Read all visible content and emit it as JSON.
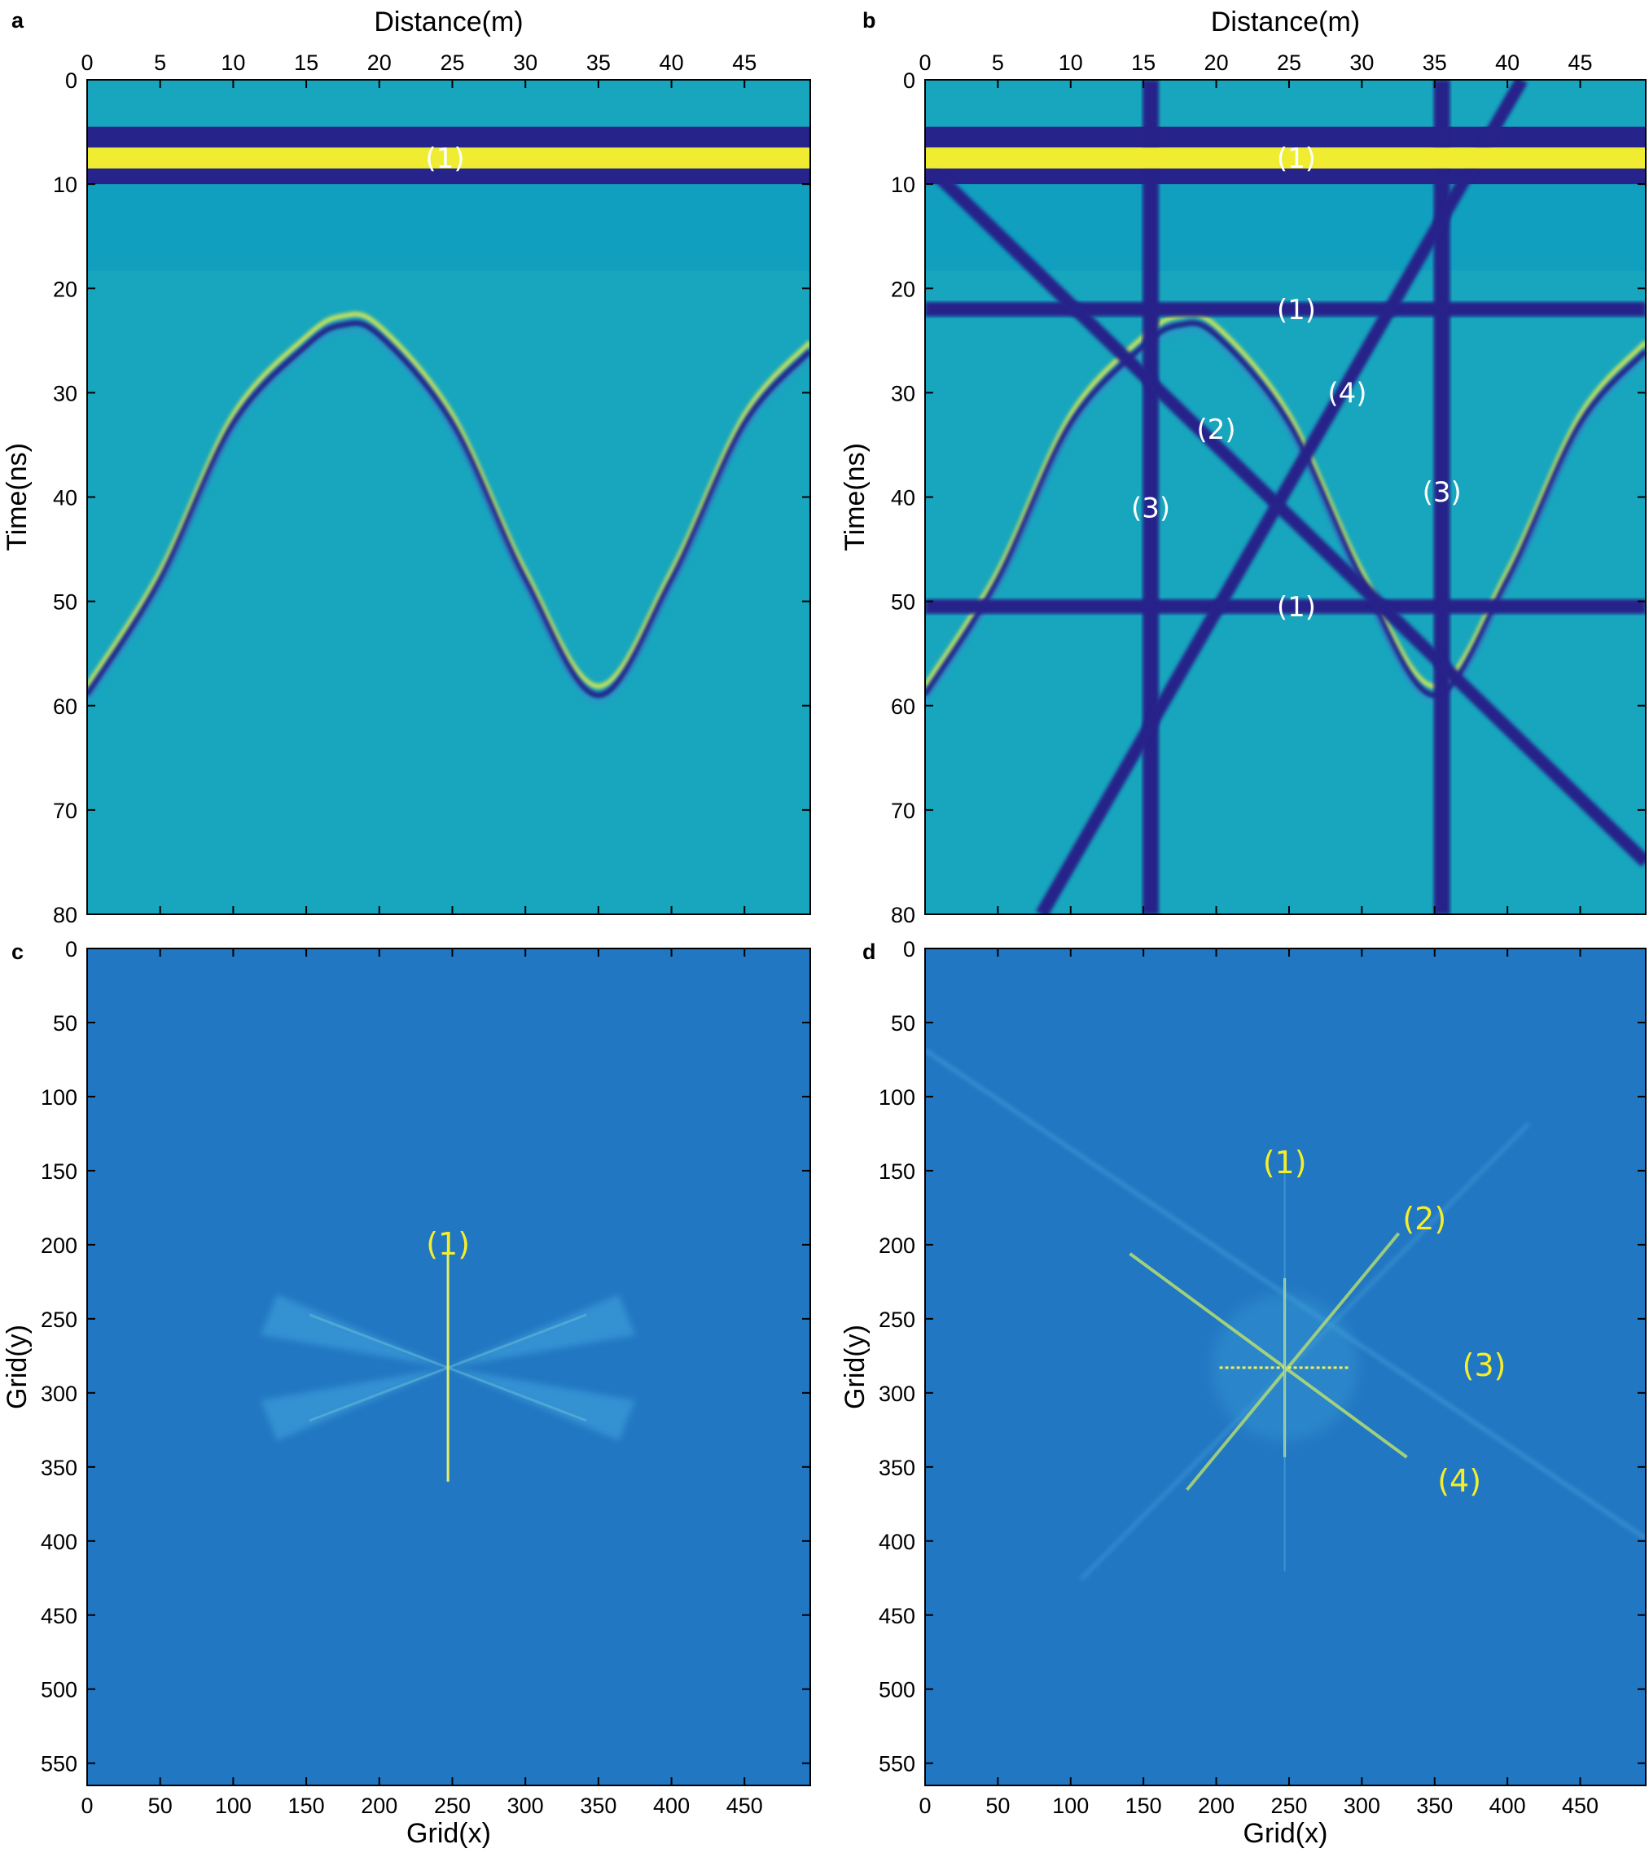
{
  "colors": {
    "background_a": "#17a6be",
    "background_cd": "#2277c2",
    "dark_blue": "#26238a",
    "yellow": "#f0ec32",
    "annotation_yellow": "#f5ee2a"
  },
  "chart_data": [
    {
      "panel": "a",
      "type": "heatmap",
      "xlabel": "Distance(m)",
      "ylabel": "Time(ns)",
      "x_ticks": [
        "0",
        "5",
        "10",
        "15",
        "20",
        "25",
        "30",
        "35",
        "40",
        "45"
      ],
      "y_ticks": [
        "0",
        "10",
        "20",
        "30",
        "40",
        "50",
        "60",
        "70",
        "80"
      ],
      "xlim": [
        0,
        49.5
      ],
      "ylim": [
        0,
        80
      ],
      "annotations": [
        {
          "text": "(1)",
          "x": 24.5,
          "y": 7.5
        }
      ],
      "direct_wave_band": {
        "yellow_time": [
          6.5,
          8.5
        ],
        "dark_time": [
          [
            4.5,
            6.5
          ],
          [
            8.5,
            10
          ]
        ]
      },
      "hyperbola_times": {
        "x": [
          0,
          5,
          10,
          15,
          17.5,
          20,
          25,
          30,
          35,
          40,
          45,
          49.5
        ],
        "t": [
          59,
          48,
          33,
          25.5,
          23.5,
          24.5,
          33,
          48,
          59,
          48,
          33,
          26
        ]
      }
    },
    {
      "panel": "b",
      "type": "heatmap",
      "xlabel": "Distance(m)",
      "ylabel": "Time(ns)",
      "x_ticks": [
        "0",
        "5",
        "10",
        "15",
        "20",
        "25",
        "30",
        "35",
        "40",
        "45"
      ],
      "y_ticks": [
        "0",
        "10",
        "20",
        "30",
        "40",
        "50",
        "60",
        "70",
        "80"
      ],
      "xlim": [
        0,
        49.5
      ],
      "ylim": [
        0,
        80
      ],
      "horizontal_noise_times": [
        22,
        50.5
      ],
      "vertical_noise_distances": [
        15.5,
        35.5
      ],
      "diagonal_noise_lines": [
        {
          "from": [
            0,
            8
          ],
          "to": [
            49.5,
            75
          ]
        },
        {
          "from": [
            8,
            80
          ],
          "to": [
            41,
            0
          ]
        }
      ],
      "annotations": [
        {
          "text": "(1)",
          "x": 25.5,
          "y": 7.5
        },
        {
          "text": "(1)",
          "x": 25.5,
          "y": 22
        },
        {
          "text": "(4)",
          "x": 29,
          "y": 30
        },
        {
          "text": "(2)",
          "x": 20,
          "y": 33.5
        },
        {
          "text": "(3)",
          "x": 35.5,
          "y": 39.5
        },
        {
          "text": "(3)",
          "x": 15.5,
          "y": 41
        },
        {
          "text": "(1)",
          "x": 25.5,
          "y": 50.5
        }
      ]
    },
    {
      "panel": "c",
      "type": "heatmap",
      "xlabel": "Grid(x)",
      "ylabel": "Grid(y)",
      "x_ticks": [
        "0",
        "50",
        "100",
        "150",
        "200",
        "250",
        "300",
        "350",
        "400",
        "450"
      ],
      "y_ticks": [
        "0",
        "50",
        "100",
        "150",
        "200",
        "250",
        "300",
        "350",
        "400",
        "450",
        "500",
        "550"
      ],
      "xlim": [
        0,
        495
      ],
      "ylim": [
        0,
        565
      ],
      "spectrum_center": [
        247,
        283
      ],
      "annotations": [
        {
          "text": "(1)",
          "x": 247,
          "y": 200
        }
      ]
    },
    {
      "panel": "d",
      "type": "heatmap",
      "xlabel": "Grid(x)",
      "ylabel": "Grid(y)",
      "x_ticks": [
        "0",
        "50",
        "100",
        "150",
        "200",
        "250",
        "300",
        "350",
        "400",
        "450"
      ],
      "y_ticks": [
        "0",
        "50",
        "100",
        "150",
        "200",
        "250",
        "300",
        "350",
        "400",
        "450",
        "500",
        "550"
      ],
      "xlim": [
        0,
        495
      ],
      "ylim": [
        0,
        565
      ],
      "spectrum_center": [
        247,
        283
      ],
      "annotations": [
        {
          "text": "(1)",
          "x": 247,
          "y": 145
        },
        {
          "text": "(2)",
          "x": 343,
          "y": 183
        },
        {
          "text": "(3)",
          "x": 384,
          "y": 282
        },
        {
          "text": "(4)",
          "x": 367,
          "y": 360
        }
      ]
    }
  ]
}
